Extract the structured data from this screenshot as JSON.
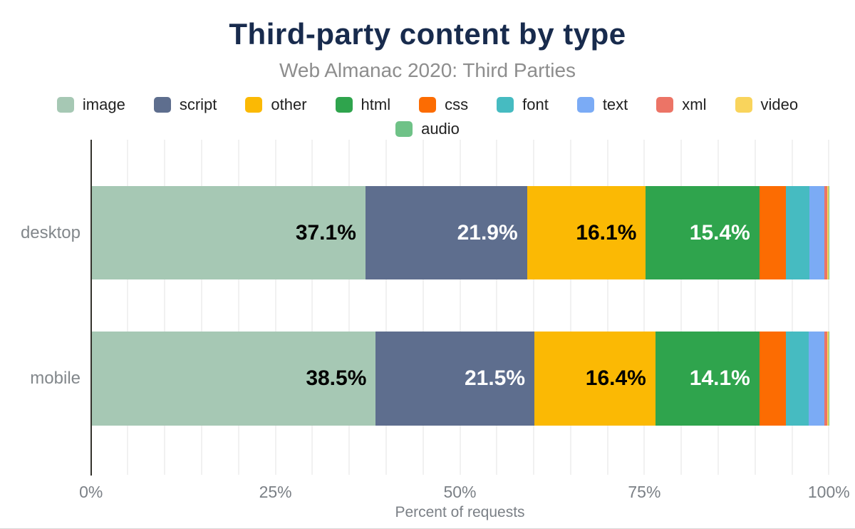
{
  "header": {
    "title": "Third-party content by type",
    "subtitle": "Web Almanac 2020: Third Parties"
  },
  "chart_data": {
    "type": "bar",
    "orientation": "horizontal",
    "stacked": true,
    "title": "Third-party content by type",
    "subtitle": "Web Almanac 2020: Third Parties",
    "xlabel": "Percent of requests",
    "ylabel": "",
    "xlim": [
      0,
      100
    ],
    "grid_step_percent": 5,
    "legend_position": "top",
    "data_label_min_percent": 10,
    "data_label_format": "one-decimal-percent",
    "categories": [
      "desktop",
      "mobile"
    ],
    "series": [
      {
        "name": "image",
        "color": "#a6c8b4",
        "label_color": "#000000",
        "values": [
          37.1,
          38.5
        ]
      },
      {
        "name": "script",
        "color": "#5e6e8e",
        "label_color": "#ffffff",
        "values": [
          21.9,
          21.5
        ]
      },
      {
        "name": "other",
        "color": "#fbb904",
        "label_color": "#000000",
        "values": [
          16.1,
          16.4
        ]
      },
      {
        "name": "html",
        "color": "#2fa44d",
        "label_color": "#ffffff",
        "values": [
          15.4,
          14.1
        ]
      },
      {
        "name": "css",
        "color": "#fc6c02",
        "label_color": "#000000",
        "values": [
          3.6,
          3.6
        ]
      },
      {
        "name": "font",
        "color": "#46bbc1",
        "label_color": "#000000",
        "values": [
          3.2,
          3.1
        ]
      },
      {
        "name": "text",
        "color": "#7babf5",
        "label_color": "#000000",
        "values": [
          2.0,
          2.1
        ]
      },
      {
        "name": "xml",
        "color": "#ec7466",
        "label_color": "#000000",
        "values": [
          0.4,
          0.4
        ]
      },
      {
        "name": "video",
        "color": "#f9d45c",
        "label_color": "#000000",
        "values": [
          0.2,
          0.2
        ]
      },
      {
        "name": "audio",
        "color": "#6fc287",
        "label_color": "#000000",
        "values": [
          0.1,
          0.1
        ]
      }
    ],
    "x_tick_labels": [
      "0%",
      "25%",
      "50%",
      "75%",
      "100%"
    ],
    "x_tick_values": [
      0,
      25,
      50,
      75,
      100
    ]
  },
  "style": {
    "title_color": "#182b4d",
    "subtitle_color": "#8d8d8d",
    "axis_line_color": "#33322c",
    "gridline_color": "#f1f1f1",
    "tick_label_color": "#7b8086",
    "category_label_color": "#82878b",
    "background": "#ffffff"
  }
}
